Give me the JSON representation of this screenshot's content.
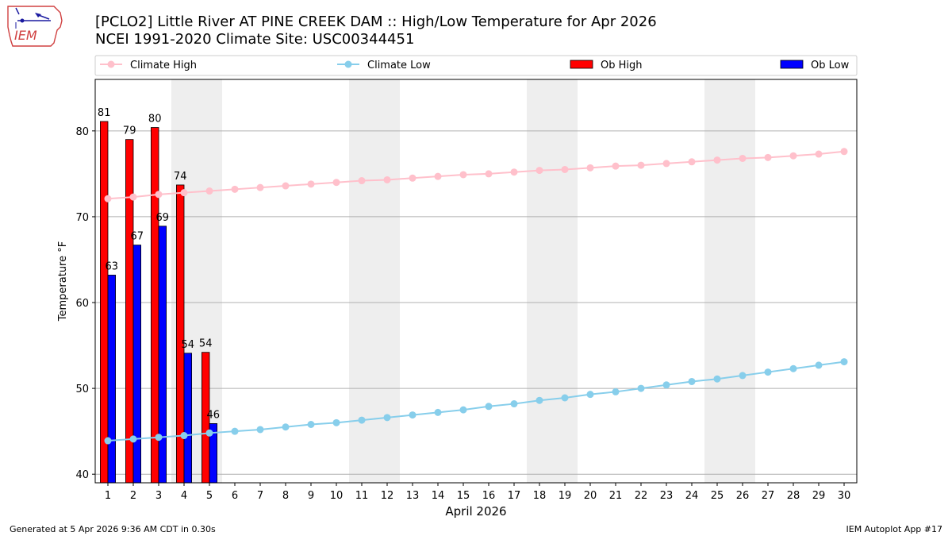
{
  "header": {
    "title_line1": "[PCLO2] Little River  AT PINE CREEK DAM :: High/Low Temperature for Apr 2026",
    "title_line2": "NCEI 1991-2020 Climate Site: USC00344451"
  },
  "logo": {
    "text": "IEM"
  },
  "footer": {
    "left": "Generated at 5 Apr 2026 9:36 AM CDT in 0.30s",
    "right": "IEM Autoplot App #17"
  },
  "colors": {
    "climate_high": "#ffc0cb",
    "climate_low": "#87ceeb",
    "ob_high": "#ff0000",
    "ob_low": "#0000ff",
    "weekend_band": "#eeeeee"
  },
  "chart_data": {
    "type": "bar",
    "xlabel": "April 2026",
    "ylabel": "Temperature °F",
    "xlim": [
      0.5,
      30.5
    ],
    "ylim": [
      39,
      86
    ],
    "yticks": [
      40,
      50,
      60,
      70,
      80
    ],
    "xticks": [
      "1",
      "2",
      "3",
      "4",
      "5",
      "6",
      "7",
      "8",
      "9",
      "10",
      "11",
      "12",
      "13",
      "14",
      "15",
      "16",
      "17",
      "18",
      "19",
      "20",
      "21",
      "22",
      "23",
      "24",
      "25",
      "26",
      "27",
      "28",
      "29",
      "30"
    ],
    "grid": "horizontal",
    "legend_position": "top",
    "weekend_bands": [
      [
        3.5,
        5.5
      ],
      [
        10.5,
        12.5
      ],
      [
        17.5,
        19.5
      ],
      [
        24.5,
        26.5
      ]
    ],
    "series": [
      {
        "name": "Climate High",
        "kind": "line",
        "x": [
          1,
          2,
          3,
          4,
          5,
          6,
          7,
          8,
          9,
          10,
          11,
          12,
          13,
          14,
          15,
          16,
          17,
          18,
          19,
          20,
          21,
          22,
          23,
          24,
          25,
          26,
          27,
          28,
          29,
          30
        ],
        "values": [
          72.1,
          72.3,
          72.6,
          72.8,
          73.0,
          73.2,
          73.4,
          73.6,
          73.8,
          74.0,
          74.2,
          74.3,
          74.5,
          74.7,
          74.9,
          75.0,
          75.2,
          75.4,
          75.5,
          75.7,
          75.9,
          76.0,
          76.2,
          76.4,
          76.6,
          76.8,
          76.9,
          77.1,
          77.3,
          77.6
        ]
      },
      {
        "name": "Climate Low",
        "kind": "line",
        "x": [
          1,
          2,
          3,
          4,
          5,
          6,
          7,
          8,
          9,
          10,
          11,
          12,
          13,
          14,
          15,
          16,
          17,
          18,
          19,
          20,
          21,
          22,
          23,
          24,
          25,
          26,
          27,
          28,
          29,
          30
        ],
        "values": [
          43.9,
          44.1,
          44.3,
          44.5,
          44.8,
          45.0,
          45.2,
          45.5,
          45.8,
          46.0,
          46.3,
          46.6,
          46.9,
          47.2,
          47.5,
          47.9,
          48.2,
          48.6,
          48.9,
          49.3,
          49.6,
          50.0,
          50.4,
          50.8,
          51.1,
          51.5,
          51.9,
          52.3,
          52.7,
          53.1
        ]
      },
      {
        "name": "Ob High",
        "kind": "bar",
        "x": [
          1,
          2,
          3,
          4,
          5
        ],
        "values": [
          81.1,
          79.0,
          80.4,
          73.7,
          54.2
        ],
        "labels": [
          "81",
          "79",
          "80",
          "74",
          "54"
        ]
      },
      {
        "name": "Ob Low",
        "kind": "bar",
        "x": [
          1,
          2,
          3,
          4,
          5
        ],
        "values": [
          63.2,
          66.7,
          68.9,
          54.1,
          45.9
        ],
        "labels": [
          "63",
          "67",
          "69",
          "54",
          "46"
        ]
      }
    ]
  }
}
